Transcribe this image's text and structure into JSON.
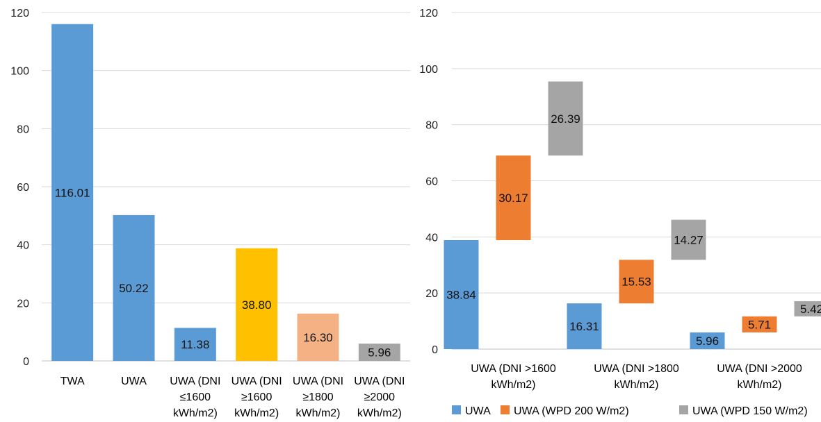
{
  "chart_data": [
    {
      "type": "bar",
      "title": "",
      "xlabel": "",
      "ylabel": "",
      "ylim": [
        0,
        120
      ],
      "yticks": [
        0,
        20,
        40,
        60,
        80,
        100,
        120
      ],
      "grid": true,
      "categories": [
        [
          "TWA"
        ],
        [
          "UWA"
        ],
        [
          "UWA (DNI",
          "≤1600",
          "kWh/m2)"
        ],
        [
          "UWA (DNI",
          "≥1600",
          "kWh/m2)"
        ],
        [
          "UWA (DNI",
          "≥1800",
          "kWh/m2)"
        ],
        [
          "UWA (DNI",
          "≥2000",
          "kWh/m2)"
        ]
      ],
      "values": [
        116.01,
        50.22,
        11.38,
        38.8,
        16.3,
        5.96
      ],
      "value_labels": [
        "116.01",
        "50.22",
        "11.38",
        "38.80",
        "16.30",
        "5.96"
      ],
      "colors": [
        "#5B9BD5",
        "#5B9BD5",
        "#5B9BD5",
        "#FFC000",
        "#F4B183",
        "#A5A5A5"
      ]
    },
    {
      "type": "bar",
      "subtype": "waterfall",
      "title": "",
      "xlabel": "",
      "ylabel": "",
      "ylim": [
        0,
        120
      ],
      "yticks": [
        0,
        20,
        40,
        60,
        80,
        100,
        120
      ],
      "grid": true,
      "legend_position": "bottom",
      "categories": [
        [
          "UWA (DNI >1600",
          "kWh/m2)"
        ],
        [
          "UWA (DNI >1800",
          "kWh/m2)"
        ],
        [
          "UWA (DNI >2000",
          "kWh/m2)"
        ]
      ],
      "series": [
        {
          "name": "UWA",
          "color": "#5B9BD5",
          "values": [
            38.84,
            16.31,
            5.96
          ],
          "labels": [
            "38.84",
            "16.31",
            "5.96"
          ]
        },
        {
          "name": "UWA (WPD 200 W/m2)",
          "color": "#ED7D31",
          "values": [
            30.17,
            15.53,
            5.71
          ],
          "labels": [
            "30.17",
            "15.53",
            "5.71"
          ]
        },
        {
          "name": "UWA (WPD 150 W/m2)",
          "color": "#A5A5A5",
          "values": [
            26.39,
            14.27,
            5.42
          ],
          "labels": [
            "26.39",
            "14.27",
            "5.42"
          ]
        }
      ]
    }
  ]
}
